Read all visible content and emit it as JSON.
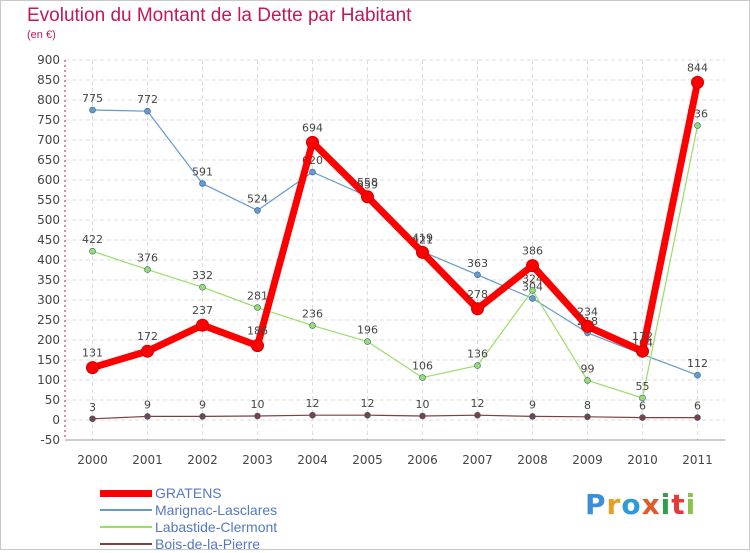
{
  "chart_data": {
    "type": "line",
    "title": "Evolution du Montant de la Dette par Habitant",
    "subtitle": "(en €)",
    "x": [
      "2000",
      "2001",
      "2002",
      "2003",
      "2004",
      "2005",
      "2006",
      "2007",
      "2008",
      "2009",
      "2010",
      "2011"
    ],
    "y_ticks": [
      "900",
      "850",
      "800",
      "750",
      "700",
      "650",
      "600",
      "550",
      "500",
      "450",
      "400",
      "350",
      "300",
      "250",
      "200",
      "150",
      "100",
      "50",
      "0",
      "-50"
    ],
    "ylim": [
      -50,
      900
    ],
    "grid": true,
    "legend_position": "bottom-left",
    "series": [
      {
        "name": "GRATENS",
        "color": "#ff0000",
        "values": [
          131,
          172,
          237,
          186,
          694,
          558,
          419,
          278,
          386,
          234,
          172,
          844
        ],
        "labels": [
          "131",
          "172",
          "237",
          "186",
          "694",
          "558",
          "419",
          "278",
          "386",
          "234",
          "172",
          "844"
        ]
      },
      {
        "name": "Marignac-Lasclares",
        "color": "#6699cc",
        "values": [
          775,
          772,
          591,
          524,
          620,
          559,
          421,
          363,
          304,
          218,
          164,
          112
        ],
        "labels": [
          "775",
          "772",
          "591",
          "524",
          "620",
          "559",
          "421",
          "363",
          "304",
          "218",
          "164",
          "112"
        ]
      },
      {
        "name": "Labastide-Clermont",
        "color": "#99dd66",
        "values": [
          422,
          376,
          332,
          281,
          236,
          196,
          106,
          136,
          324,
          99,
          55,
          736
        ],
        "labels": [
          "422",
          "376",
          "332",
          "281",
          "236",
          "196",
          "106",
          "136",
          "324",
          "99",
          "55",
          "736"
        ]
      },
      {
        "name": "Bois-de-la-Pierre",
        "color": "#804040",
        "values": [
          3,
          9,
          9,
          10,
          12,
          12,
          10,
          12,
          9,
          8,
          6,
          6
        ],
        "labels": [
          "3",
          "9",
          "9",
          "10",
          "12",
          "12",
          "10",
          "12",
          "9",
          "8",
          "6",
          "6"
        ]
      }
    ]
  },
  "logo": {
    "text": "Proxiti"
  }
}
